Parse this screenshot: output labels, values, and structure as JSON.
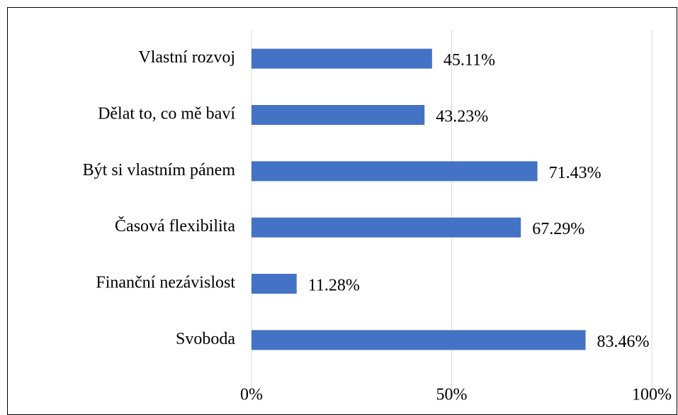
{
  "chart_data": {
    "type": "bar",
    "orientation": "horizontal",
    "categories": [
      "Vlastní rozvoj",
      "Dělat to, co mě baví",
      "Být si vlastním pánem",
      "Časová flexibilita",
      "Finanční nezávislost",
      "Svoboda"
    ],
    "values": [
      45.11,
      43.23,
      71.43,
      67.29,
      11.28,
      83.46
    ],
    "value_labels": [
      "45.11%",
      "43.23%",
      "71.43%",
      "67.29%",
      "11.28%",
      "83.46%"
    ],
    "color": "#4472c4",
    "xlim": [
      0,
      100
    ],
    "xticks": [
      {
        "value": 0,
        "label": "0%"
      },
      {
        "value": 50,
        "label": "50%"
      },
      {
        "value": 100,
        "label": "100%"
      }
    ],
    "grid": true
  }
}
